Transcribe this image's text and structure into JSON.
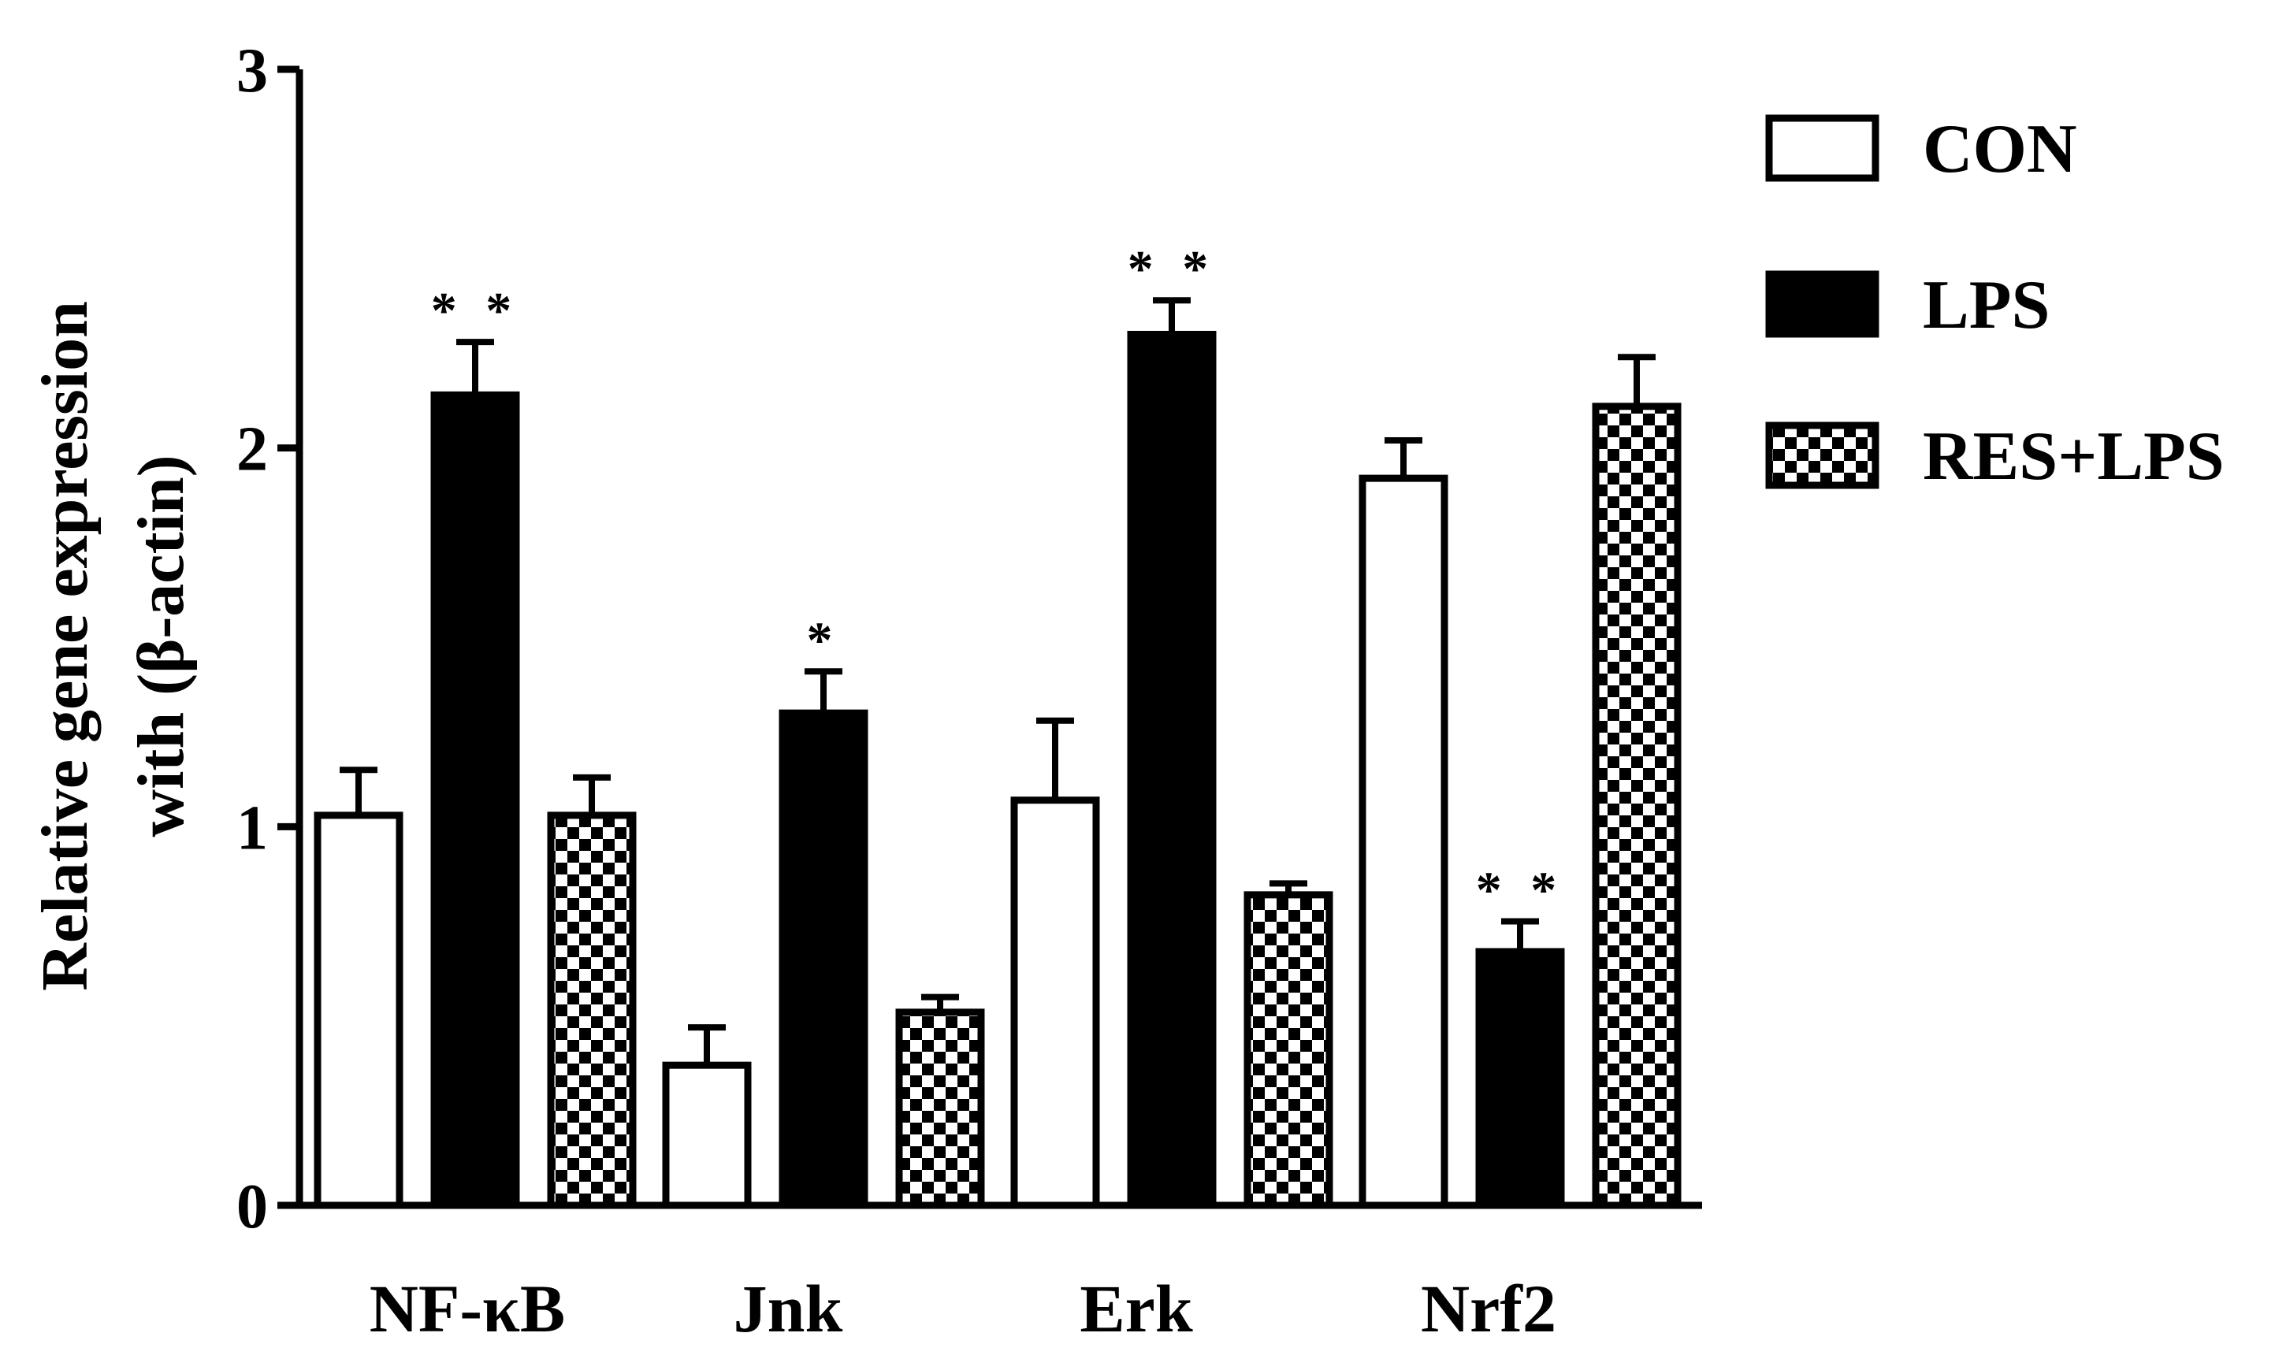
{
  "chart_data": {
    "type": "bar",
    "categories": [
      "NF-κB",
      "Jnk",
      "Erk",
      "Nrf2"
    ],
    "series": [
      {
        "name": "CON",
        "values": [
          1.03,
          0.37,
          1.07,
          1.92
        ],
        "errors": [
          0.12,
          0.1,
          0.21,
          0.1
        ],
        "significance": [
          "",
          "",
          "",
          ""
        ]
      },
      {
        "name": "LPS",
        "values": [
          2.14,
          1.3,
          2.3,
          0.67
        ],
        "errors": [
          0.14,
          0.11,
          0.09,
          0.08
        ],
        "significance": [
          "**",
          "*",
          "**",
          "**"
        ]
      },
      {
        "name": "RES+LPS",
        "values": [
          1.03,
          0.51,
          0.82,
          2.11
        ],
        "errors": [
          0.1,
          0.04,
          0.03,
          0.13
        ],
        "significance": [
          "",
          "",
          "",
          ""
        ]
      }
    ],
    "ylabel_line1": "Relative gene expression",
    "ylabel_line2": "with (β-actin)",
    "ylim": [
      0,
      3
    ],
    "yticks": [
      "0",
      "1",
      "2",
      "3"
    ],
    "grid": false,
    "legend_position": "right"
  },
  "colors": {
    "CON": "#ffffff",
    "LPS": "#000000",
    "RES+LPS": "checkerboard"
  }
}
